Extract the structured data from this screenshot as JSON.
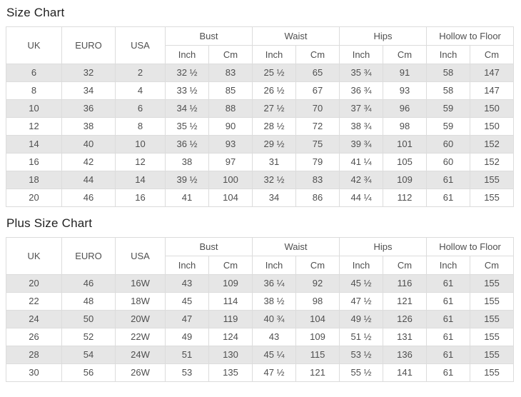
{
  "titles": {
    "size_chart": "Size Chart",
    "plus_size_chart": "Plus Size Chart"
  },
  "chart_data": [
    {
      "type": "table",
      "title": "Size Chart",
      "header": {
        "main": [
          {
            "label": "UK",
            "rowspan": 2
          },
          {
            "label": "EURO",
            "rowspan": 2
          },
          {
            "label": "USA",
            "rowspan": 2
          },
          {
            "label": "Bust",
            "colspan": 2
          },
          {
            "label": "Waist",
            "colspan": 2
          },
          {
            "label": "Hips",
            "colspan": 2
          },
          {
            "label": "Hollow to Floor",
            "colspan": 2
          }
        ],
        "sub": [
          "Inch",
          "Cm",
          "Inch",
          "Cm",
          "Inch",
          "Cm",
          "Inch",
          "Cm"
        ]
      },
      "rows": [
        [
          "6",
          "32",
          "2",
          "32 ½",
          "83",
          "25 ½",
          "65",
          "35 ¾",
          "91",
          "58",
          "147"
        ],
        [
          "8",
          "34",
          "4",
          "33 ½",
          "85",
          "26 ½",
          "67",
          "36 ¾",
          "93",
          "58",
          "147"
        ],
        [
          "10",
          "36",
          "6",
          "34 ½",
          "88",
          "27 ½",
          "70",
          "37 ¾",
          "96",
          "59",
          "150"
        ],
        [
          "12",
          "38",
          "8",
          "35 ½",
          "90",
          "28 ½",
          "72",
          "38 ¾",
          "98",
          "59",
          "150"
        ],
        [
          "14",
          "40",
          "10",
          "36 ½",
          "93",
          "29 ½",
          "75",
          "39 ¾",
          "101",
          "60",
          "152"
        ],
        [
          "16",
          "42",
          "12",
          "38",
          "97",
          "31",
          "79",
          "41 ¼",
          "105",
          "60",
          "152"
        ],
        [
          "18",
          "44",
          "14",
          "39 ½",
          "100",
          "32 ½",
          "83",
          "42 ¾",
          "109",
          "61",
          "155"
        ],
        [
          "20",
          "46",
          "16",
          "41",
          "104",
          "34",
          "86",
          "44 ¼",
          "112",
          "61",
          "155"
        ]
      ],
      "stripe_color": "#e6e6e6",
      "border_color": "#dcdcdc"
    },
    {
      "type": "table",
      "title": "Plus Size Chart",
      "header": {
        "main": [
          {
            "label": "UK",
            "rowspan": 2
          },
          {
            "label": "EURO",
            "rowspan": 2
          },
          {
            "label": "USA",
            "rowspan": 2
          },
          {
            "label": "Bust",
            "colspan": 2
          },
          {
            "label": "Waist",
            "colspan": 2
          },
          {
            "label": "Hips",
            "colspan": 2
          },
          {
            "label": "Hollow to Floor",
            "colspan": 2
          }
        ],
        "sub": [
          "Inch",
          "Cm",
          "Inch",
          "Cm",
          "Inch",
          "Cm",
          "Inch",
          "Cm"
        ]
      },
      "rows": [
        [
          "20",
          "46",
          "16W",
          "43",
          "109",
          "36 ¼",
          "92",
          "45 ½",
          "116",
          "61",
          "155"
        ],
        [
          "22",
          "48",
          "18W",
          "45",
          "114",
          "38 ½",
          "98",
          "47 ½",
          "121",
          "61",
          "155"
        ],
        [
          "24",
          "50",
          "20W",
          "47",
          "119",
          "40 ¾",
          "104",
          "49 ½",
          "126",
          "61",
          "155"
        ],
        [
          "26",
          "52",
          "22W",
          "49",
          "124",
          "43",
          "109",
          "51 ½",
          "131",
          "61",
          "155"
        ],
        [
          "28",
          "54",
          "24W",
          "51",
          "130",
          "45 ¼",
          "115",
          "53 ½",
          "136",
          "61",
          "155"
        ],
        [
          "30",
          "56",
          "26W",
          "53",
          "135",
          "47 ½",
          "121",
          "55 ½",
          "141",
          "61",
          "155"
        ]
      ],
      "stripe_color": "#e6e6e6",
      "border_color": "#dcdcdc"
    }
  ]
}
